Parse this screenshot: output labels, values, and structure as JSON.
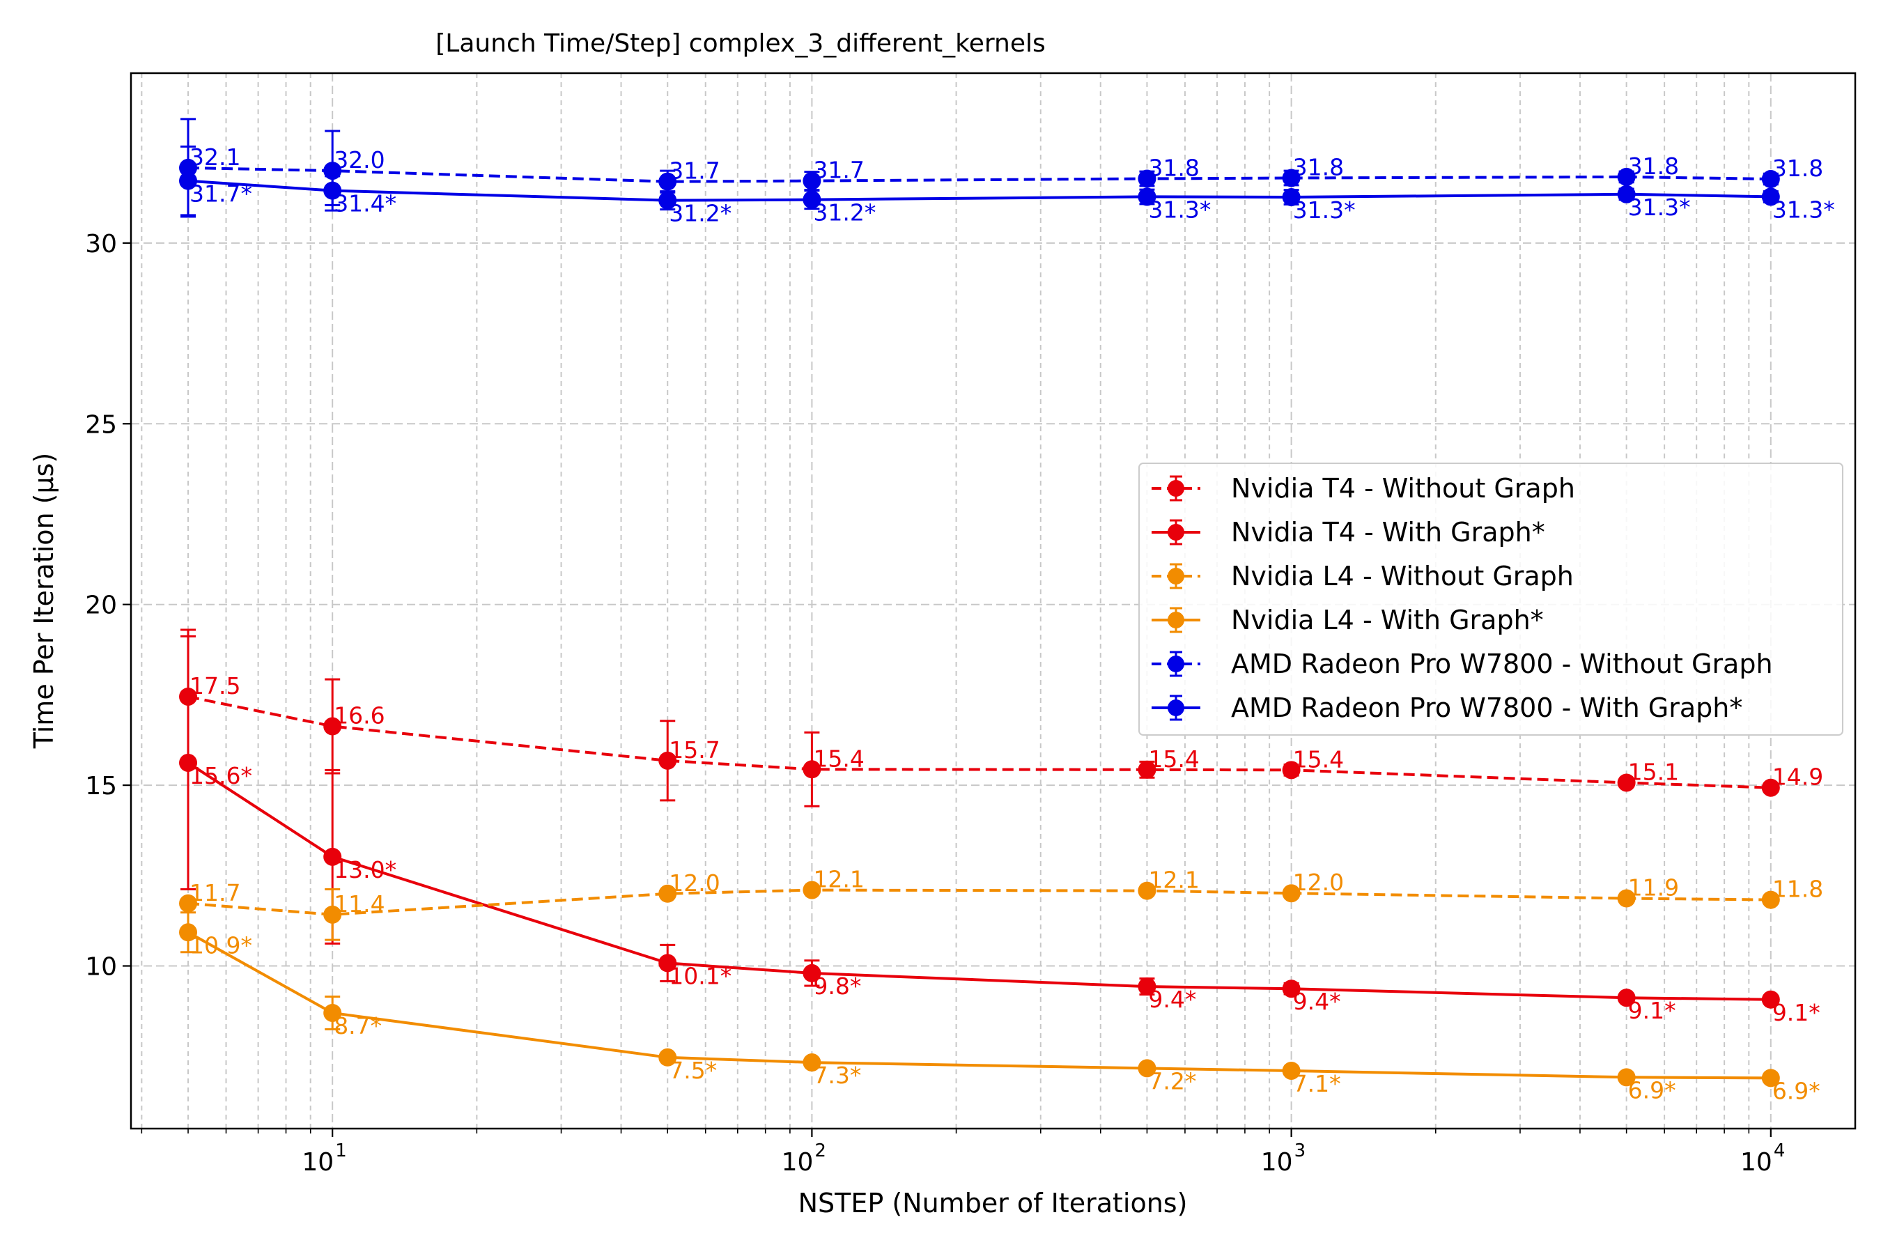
{
  "chart_data": {
    "type": "line",
    "title": "[Launch Time/Step] complex_3_different_kernels",
    "xlabel": "NSTEP (Number of Iterations)",
    "ylabel": "Time Per Iteration (µs)",
    "x_scale": "log",
    "xlim": [
      3.8,
      15000
    ],
    "ylim": [
      5.5,
      34.7
    ],
    "grid": true,
    "legend_position": "center-right",
    "x": [
      5,
      10,
      50,
      100,
      500,
      1000,
      5000,
      10000
    ],
    "x_ticks": [
      {
        "value": 10,
        "base": "10",
        "exp": "1"
      },
      {
        "value": 100,
        "base": "10",
        "exp": "2"
      },
      {
        "value": 1000,
        "base": "10",
        "exp": "3"
      },
      {
        "value": 10000,
        "base": "10",
        "exp": "4"
      }
    ],
    "y_ticks": [
      {
        "value": 10,
        "label": "10"
      },
      {
        "value": 15,
        "label": "15"
      },
      {
        "value": 20,
        "label": "20"
      },
      {
        "value": 25,
        "label": "25"
      },
      {
        "value": 30,
        "label": "30"
      }
    ],
    "series": [
      {
        "name": "Nvidia T4 - Without Graph",
        "color": "#e8000b",
        "dashed": true,
        "values": [
          17.45,
          16.63,
          15.68,
          15.44,
          15.43,
          15.42,
          15.07,
          14.93
        ],
        "errors": [
          1.85,
          1.3,
          1.1,
          1.02,
          0.22,
          0.15,
          0.1,
          0.1
        ],
        "labels": [
          "17.5",
          "16.6",
          "15.7",
          "15.4",
          "15.4",
          "15.4",
          "15.1",
          "14.9"
        ]
      },
      {
        "name": "Nvidia T4 - With Graph*",
        "color": "#e8000b",
        "dashed": false,
        "values": [
          15.62,
          13.02,
          10.08,
          9.8,
          9.43,
          9.37,
          9.12,
          9.07
        ],
        "errors": [
          3.5,
          2.4,
          0.5,
          0.35,
          0.22,
          0.15,
          0.1,
          0.1
        ],
        "labels": [
          "15.6*",
          "13.0*",
          "10.1*",
          "9.8*",
          "9.4*",
          "9.4*",
          "9.1*",
          "9.1*"
        ]
      },
      {
        "name": "Nvidia L4 - Without Graph",
        "color": "#f28c00",
        "dashed": true,
        "values": [
          11.73,
          11.42,
          12.0,
          12.1,
          12.08,
          12.01,
          11.87,
          11.83
        ],
        "errors": [
          0.1,
          0.7,
          0.1,
          0.1,
          0.1,
          0.1,
          0.1,
          0.1
        ],
        "labels": [
          "11.7",
          "11.4",
          "12.0",
          "12.1",
          "12.1",
          "12.0",
          "11.9",
          "11.8"
        ]
      },
      {
        "name": "Nvidia L4 - With Graph*",
        "color": "#f28c00",
        "dashed": false,
        "values": [
          10.93,
          8.7,
          7.47,
          7.33,
          7.17,
          7.1,
          6.92,
          6.9
        ],
        "errors": [
          0.55,
          0.45,
          0.1,
          0.1,
          0.1,
          0.1,
          0.1,
          0.1
        ],
        "labels": [
          "10.9*",
          "8.7*",
          "7.5*",
          "7.3*",
          "7.2*",
          "7.1*",
          "6.9*",
          "6.9*"
        ]
      },
      {
        "name": "AMD Radeon Pro W7800 - Without Graph",
        "color": "#0000e6",
        "dashed": true,
        "values": [
          32.08,
          32.0,
          31.7,
          31.72,
          31.78,
          31.8,
          31.83,
          31.77
        ],
        "errors": [
          1.35,
          1.1,
          0.3,
          0.25,
          0.2,
          0.2,
          0.15,
          0.15
        ],
        "labels": [
          "32.1",
          "32.0",
          "31.7",
          "31.7",
          "31.8",
          "31.8",
          "31.8",
          "31.8"
        ]
      },
      {
        "name": "AMD Radeon Pro W7800 - With Graph*",
        "color": "#0000e6",
        "dashed": false,
        "values": [
          31.72,
          31.45,
          31.18,
          31.2,
          31.28,
          31.27,
          31.35,
          31.28
        ],
        "errors": [
          0.95,
          0.4,
          0.25,
          0.25,
          0.2,
          0.2,
          0.15,
          0.15
        ],
        "labels": [
          "31.7*",
          "31.4*",
          "31.2*",
          "31.2*",
          "31.3*",
          "31.3*",
          "31.3*",
          "31.3*"
        ]
      }
    ]
  }
}
